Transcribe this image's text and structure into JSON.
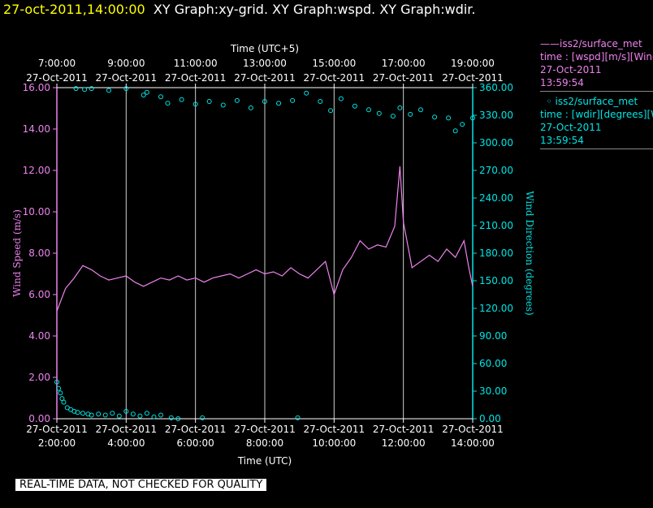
{
  "header": {
    "timestamp": "27-oct-2011,14:00:00",
    "graph_titles": "XY Graph:xy-grid.  XY Graph:wspd.  XY Graph:wdir."
  },
  "legend": [
    {
      "marker": "——",
      "name": "iss2/surface_met",
      "desc": "time : [wspd][m/s][Wind",
      "date": "27-Oct-2011",
      "time": "13:59:54",
      "color": "#ee82ee"
    },
    {
      "marker": "◦",
      "name": "iss2/surface_met",
      "desc": "time : [wdir][degrees][W",
      "date": "27-Oct-2011",
      "time": "13:59:54",
      "color": "#00e5e5"
    }
  ],
  "notice": "REAL-TIME DATA, NOT CHECKED FOR QUALITY",
  "chart_data": {
    "type": "line",
    "x_axis_bottom": {
      "label": "Time (UTC)",
      "ticks": [
        "2:00:00",
        "4:00:00",
        "6:00:00",
        "8:00:00",
        "10:00:00",
        "12:00:00",
        "14:00:00"
      ],
      "tick_dates": [
        "27-Oct-2011",
        "27-Oct-2011",
        "27-Oct-2011",
        "27-Oct-2011",
        "27-Oct-2011",
        "27-Oct-2011",
        "27-Oct-2011"
      ],
      "range": [
        "2:00:00",
        "14:00:00"
      ]
    },
    "x_axis_top": {
      "label": "Time (UTC+5)",
      "ticks": [
        "7:00:00",
        "9:00:00",
        "11:00:00",
        "13:00:00",
        "15:00:00",
        "17:00:00",
        "19:00:00"
      ],
      "tick_dates": [
        "27-Oct-2011",
        "27-Oct-2011",
        "27-Oct-2011",
        "27-Oct-2011",
        "27-Oct-2011",
        "27-Oct-2011",
        "27-Oct-2011"
      ]
    },
    "y_axis_left": {
      "label": "Wind Speed (m/s)",
      "ylim": [
        0,
        16
      ],
      "ticks": [
        "0.00",
        "2.00",
        "4.00",
        "6.00",
        "8.00",
        "10.00",
        "12.00",
        "14.00",
        "16.00"
      ]
    },
    "y_axis_right": {
      "label": "Wind Direction (degrees)",
      "ylim": [
        0,
        360
      ],
      "ticks": [
        "0.00",
        "30.00",
        "60.00",
        "90.00",
        "120.00",
        "150.00",
        "180.00",
        "210.00",
        "240.00",
        "270.00",
        "300.00",
        "330.00",
        "360.00"
      ]
    },
    "grid": "vertical lines at bottom x ticks",
    "series": [
      {
        "name": "iss2/surface_met",
        "variable": "wspd",
        "axis": "left",
        "style": "line",
        "color": "#ee82ee",
        "x_hours_utc": [
          2.0,
          2.25,
          2.5,
          2.75,
          3.0,
          3.25,
          3.5,
          3.75,
          4.0,
          4.25,
          4.5,
          4.75,
          5.0,
          5.25,
          5.5,
          5.75,
          6.0,
          6.25,
          6.5,
          6.75,
          7.0,
          7.25,
          7.5,
          7.75,
          8.0,
          8.25,
          8.5,
          8.75,
          9.0,
          9.25,
          9.5,
          9.75,
          10.0,
          10.25,
          10.5,
          10.75,
          11.0,
          11.25,
          11.5,
          11.75,
          11.9,
          12.0,
          12.25,
          12.5,
          12.75,
          13.0,
          13.25,
          13.5,
          13.75,
          13.9,
          14.0
        ],
        "values": [
          5.2,
          6.3,
          6.8,
          7.4,
          7.2,
          6.9,
          6.7,
          6.8,
          6.9,
          6.6,
          6.4,
          6.6,
          6.8,
          6.7,
          6.9,
          6.7,
          6.8,
          6.6,
          6.8,
          6.9,
          7.0,
          6.8,
          7.0,
          7.2,
          7.0,
          7.1,
          6.9,
          7.3,
          7.0,
          6.8,
          7.2,
          7.6,
          6.0,
          7.2,
          7.8,
          8.6,
          8.2,
          8.4,
          8.3,
          9.3,
          12.2,
          9.5,
          7.3,
          7.6,
          7.9,
          7.6,
          8.2,
          7.8,
          8.6,
          7.2,
          6.4
        ]
      },
      {
        "name": "iss2/surface_met",
        "variable": "wdir",
        "axis": "right",
        "style": "markers",
        "color": "#00e5e5",
        "segments": [
          {
            "x_hours_utc": [
              2.0,
              2.05,
              2.1,
              2.15,
              2.2,
              2.3,
              2.4,
              2.5,
              2.6,
              2.75,
              2.9,
              3.0,
              3.2,
              3.4,
              3.6,
              3.8,
              4.0,
              4.2,
              4.4,
              4.6,
              4.8,
              5.0,
              5.3,
              5.5,
              6.2,
              8.95
            ],
            "values": [
              40,
              33,
              28,
              22,
              18,
              12,
              10,
              8,
              7,
              6,
              5,
              4,
              5,
              4,
              6,
              3,
              8,
              5,
              3,
              6,
              2,
              4,
              1,
              0,
              1,
              1
            ]
          },
          {
            "x_hours_utc": [
              2.55,
              2.8,
              3.0,
              3.5,
              4.0,
              4.5,
              4.6,
              5.0,
              5.2,
              5.6,
              6.0,
              6.4,
              6.8,
              7.2,
              7.6,
              8.0,
              8.4,
              8.8,
              9.2,
              9.6,
              9.9,
              10.2,
              10.6,
              11.0,
              11.3,
              11.7,
              11.9,
              12.2,
              12.5,
              12.9,
              13.3,
              13.5,
              13.7,
              14.0
            ],
            "values": [
              359,
              358,
              359,
              357,
              359,
              352,
              355,
              350,
              343,
              347,
              342,
              345,
              341,
              346,
              338,
              345,
              343,
              346,
              354,
              345,
              335,
              348,
              340,
              336,
              332,
              329,
              338,
              331,
              336,
              328,
              327,
              313,
              320,
              327
            ]
          }
        ]
      }
    ]
  }
}
